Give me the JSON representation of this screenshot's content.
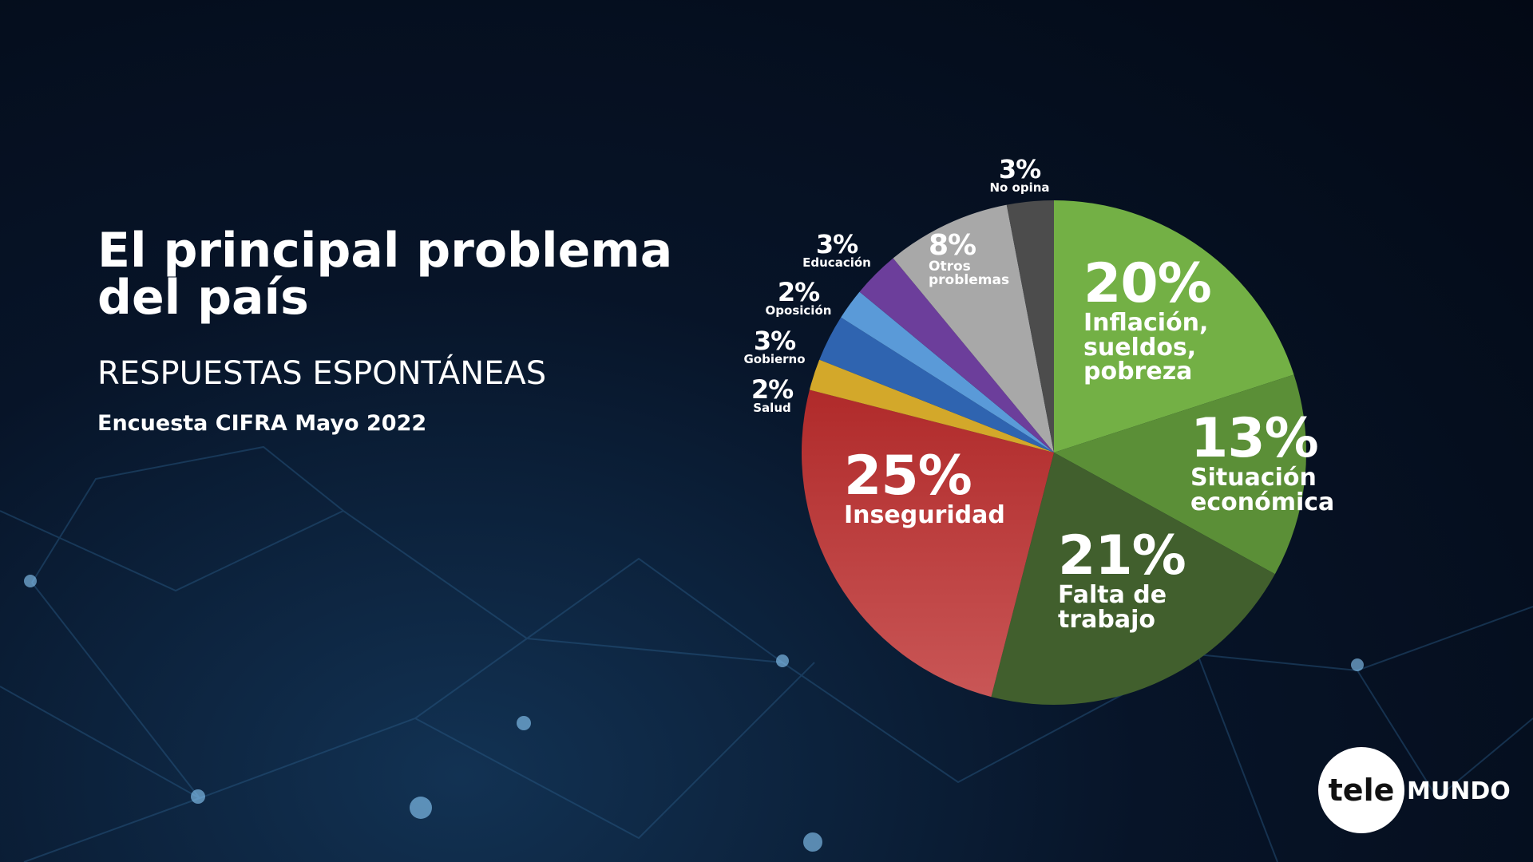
{
  "header": {
    "title": "El principal problema del país",
    "subtitle": "RESPUESTAS ESPONTÁNEAS",
    "source": "Encuesta CIFRA Mayo 2022"
  },
  "chart_data": {
    "type": "pie",
    "categories": [
      "Inflación, sueldos, pobreza",
      "Situación económica",
      "Falta de trabajo",
      "Inseguridad",
      "Salud",
      "Gobierno",
      "Oposición",
      "Educación",
      "Otros problemas",
      "No opina"
    ],
    "values": [
      20,
      13,
      21,
      25,
      2,
      3,
      2,
      3,
      8,
      3
    ],
    "value_labels": [
      "20%",
      "13%",
      "21%",
      "25%",
      "2%",
      "3%",
      "2%",
      "3%",
      "8%",
      "3%"
    ],
    "colors": [
      "#73b045",
      "#5b8f37",
      "#415f2d",
      "#b8302f",
      "#d3a82a",
      "#2f64b0",
      "#5a9ad8",
      "#6c3e9b",
      "#a8a8a8",
      "#4c4c4c"
    ]
  },
  "logo": {
    "left": "tele",
    "right": "MUNDO"
  }
}
